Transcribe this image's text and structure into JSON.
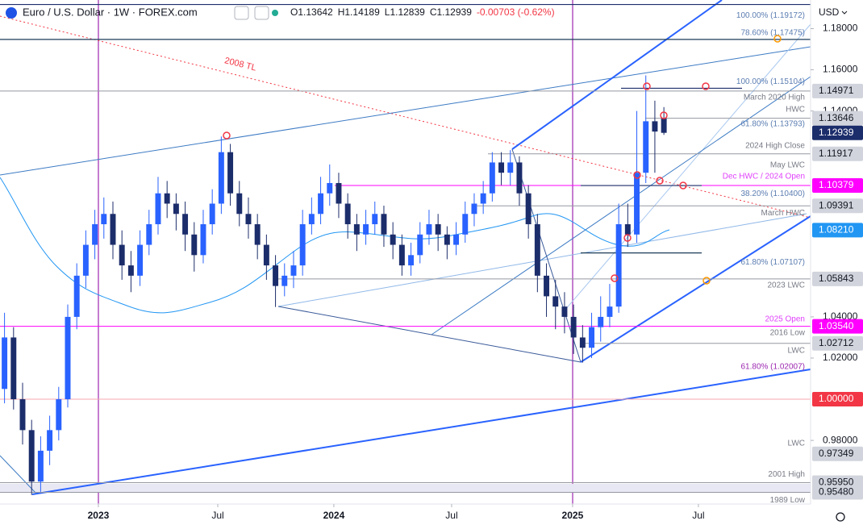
{
  "chart_data": {
    "type": "candlestick",
    "title": "Euro / U.S. Dollar · 1W · FOREX.com",
    "legend_values": [
      "O1.13642",
      "H1.14189",
      "L1.12839",
      "C1.12939",
      "-0.00703 (-0.62%)"
    ],
    "currency": "USD",
    "up_color": "#2962ff",
    "down_color": "#1c2d6b",
    "xlim": [
      -0.5,
      89.24
    ],
    "xticks": [
      {
        "value": 10.39,
        "label": "2023"
      },
      {
        "value": 23.61,
        "label": "Jul"
      },
      {
        "value": 36.46,
        "label": "2024"
      },
      {
        "value": 49.5,
        "label": "Jul"
      },
      {
        "value": 62.89,
        "label": "2025"
      },
      {
        "value": 76.82,
        "label": "Jul"
      }
    ],
    "ylim": [
      0.9491,
      1.1939
    ],
    "yticks": [
      {
        "value": 1.18,
        "label": "1.18000"
      },
      {
        "value": 1.16,
        "label": "1.16000"
      },
      {
        "value": 1.14,
        "label": "1.14000"
      },
      {
        "value": 1.04,
        "label": "1.04000"
      },
      {
        "value": 1.02,
        "label": "1.02000"
      },
      {
        "value": 0.98,
        "label": "0.98000"
      }
    ],
    "ohlc": [
      [
        1.005,
        1.042,
        0.998,
        1.03
      ],
      [
        1.03,
        1.035,
        0.995,
        1.0
      ],
      [
        1.0,
        1.008,
        0.978,
        0.985
      ],
      [
        0.985,
        0.99,
        0.9535,
        0.96
      ],
      [
        0.96,
        0.982,
        0.955,
        0.975
      ],
      [
        0.975,
        0.992,
        0.968,
        0.985
      ],
      [
        0.985,
        1.006,
        0.98,
        1.0
      ],
      [
        1.0,
        1.046,
        0.996,
        1.04
      ],
      [
        1.04,
        1.066,
        1.034,
        1.06
      ],
      [
        1.06,
        1.082,
        1.054,
        1.075
      ],
      [
        1.075,
        1.092,
        1.068,
        1.085
      ],
      [
        1.085,
        1.098,
        1.078,
        1.09
      ],
      [
        1.09,
        1.096,
        1.068,
        1.075
      ],
      [
        1.075,
        1.082,
        1.058,
        1.065
      ],
      [
        1.065,
        1.072,
        1.052,
        1.06
      ],
      [
        1.06,
        1.082,
        1.055,
        1.075
      ],
      [
        1.075,
        1.092,
        1.07,
        1.085
      ],
      [
        1.085,
        1.108,
        1.08,
        1.1
      ],
      [
        1.1,
        1.106,
        1.088,
        1.095
      ],
      [
        1.095,
        1.1,
        1.082,
        1.09
      ],
      [
        1.09,
        1.096,
        1.072,
        1.08
      ],
      [
        1.08,
        1.086,
        1.062,
        1.07
      ],
      [
        1.07,
        1.092,
        1.066,
        1.085
      ],
      [
        1.085,
        1.102,
        1.08,
        1.095
      ],
      [
        1.095,
        1.1276,
        1.09,
        1.12
      ],
      [
        1.12,
        1.124,
        1.094,
        1.1
      ],
      [
        1.1,
        1.106,
        1.084,
        1.09
      ],
      [
        1.09,
        1.098,
        1.078,
        1.085
      ],
      [
        1.085,
        1.09,
        1.068,
        1.075
      ],
      [
        1.075,
        1.08,
        1.058,
        1.065
      ],
      [
        1.065,
        1.07,
        1.0448,
        1.055
      ],
      [
        1.055,
        1.066,
        1.05,
        1.06
      ],
      [
        1.06,
        1.072,
        1.054,
        1.065
      ],
      [
        1.065,
        1.092,
        1.06,
        1.085
      ],
      [
        1.085,
        1.098,
        1.08,
        1.09
      ],
      [
        1.09,
        1.108,
        1.085,
        1.1
      ],
      [
        1.1,
        1.114,
        1.094,
        1.105
      ],
      [
        1.105,
        1.11,
        1.088,
        1.095
      ],
      [
        1.095,
        1.1,
        1.078,
        1.085
      ],
      [
        1.085,
        1.09,
        1.072,
        1.08
      ],
      [
        1.08,
        1.092,
        1.075,
        1.085
      ],
      [
        1.085,
        1.096,
        1.08,
        1.09
      ],
      [
        1.09,
        1.094,
        1.074,
        1.08
      ],
      [
        1.08,
        1.086,
        1.068,
        1.075
      ],
      [
        1.075,
        1.08,
        1.06,
        1.065
      ],
      [
        1.065,
        1.076,
        1.06,
        1.07
      ],
      [
        1.07,
        1.086,
        1.066,
        1.08
      ],
      [
        1.08,
        1.092,
        1.075,
        1.085
      ],
      [
        1.085,
        1.09,
        1.072,
        1.08
      ],
      [
        1.08,
        1.084,
        1.068,
        1.075
      ],
      [
        1.075,
        1.086,
        1.07,
        1.08
      ],
      [
        1.08,
        1.096,
        1.076,
        1.09
      ],
      [
        1.09,
        1.1,
        1.084,
        1.095
      ],
      [
        1.095,
        1.106,
        1.09,
        1.1
      ],
      [
        1.1,
        1.12,
        1.096,
        1.115
      ],
      [
        1.115,
        1.12,
        1.104,
        1.11
      ],
      [
        1.11,
        1.121,
        1.104,
        1.115
      ],
      [
        1.115,
        1.118,
        1.094,
        1.1
      ],
      [
        1.1,
        1.104,
        1.078,
        1.085
      ],
      [
        1.085,
        1.09,
        1.052,
        1.06
      ],
      [
        1.06,
        1.066,
        1.04,
        1.05
      ],
      [
        1.05,
        1.058,
        1.034,
        1.045
      ],
      [
        1.045,
        1.052,
        1.032,
        1.04
      ],
      [
        1.04,
        1.046,
        1.022,
        1.03
      ],
      [
        1.03,
        1.036,
        1.0178,
        1.025
      ],
      [
        1.025,
        1.042,
        1.02,
        1.035
      ],
      [
        1.035,
        1.05,
        1.028,
        1.04
      ],
      [
        1.04,
        1.056,
        1.035,
        1.045
      ],
      [
        1.045,
        1.095,
        1.042,
        1.085
      ],
      [
        1.085,
        1.095,
        1.074,
        1.08
      ],
      [
        1.08,
        1.14,
        1.076,
        1.11
      ],
      [
        1.11,
        1.1573,
        1.105,
        1.135
      ],
      [
        1.135,
        1.145,
        1.11,
        1.13
      ],
      [
        1.13642,
        1.14189,
        1.12839,
        1.12939
      ]
    ],
    "levels": [
      {
        "value": 1.14971,
        "tag": "1.14971",
        "color": "#d1d4dc",
        "label_color": "#131722"
      },
      {
        "value": 1.13646,
        "tag": "1.13646",
        "color": "#d1d4dc",
        "label_color": "#131722"
      },
      {
        "value": 1.12939,
        "tag": "1.12939",
        "color": "#1c2d6b",
        "label_color": "#ffffff"
      },
      {
        "value": 1.11917,
        "tag": "1.11917",
        "color": "#d1d4dc",
        "label_color": "#131722"
      },
      {
        "value": 1.10379,
        "tag": "1.10379",
        "color": "#ff00ff",
        "label_color": "#ffffff"
      },
      {
        "value": 1.09391,
        "tag": "1.09391",
        "color": "#d1d4dc",
        "label_color": "#131722"
      },
      {
        "value": 1.0821,
        "tag": "1.08210",
        "color": "#2196f3",
        "label_color": "#ffffff"
      },
      {
        "value": 1.05843,
        "tag": "1.05843",
        "color": "#d1d4dc",
        "label_color": "#131722"
      },
      {
        "value": 1.0354,
        "tag": "1.03540",
        "color": "#ff00ff",
        "label_color": "#ffffff"
      },
      {
        "value": 1.02712,
        "tag": "1.02712",
        "color": "#d1d4dc",
        "label_color": "#131722"
      },
      {
        "value": 1.0,
        "tag": "1.00000",
        "color": "#f23645",
        "label_color": "#ffffff"
      },
      {
        "value": 0.97349,
        "tag": "0.97349",
        "color": "#d1d4dc",
        "label_color": "#131722"
      },
      {
        "value": 0.9595,
        "tag": "0.95950",
        "color": "#d1d4dc",
        "label_color": "#131722"
      },
      {
        "value": 0.9548,
        "tag": "0.95480",
        "color": "#d1d4dc",
        "label_color": "#131722"
      }
    ],
    "annotations": [
      {
        "text": "100.00% (1.19172)",
        "value": 1.19172,
        "color": "#5b7db1"
      },
      {
        "text": "78.60% (1.17475)",
        "value": 1.17475,
        "color": "#5b7db1"
      },
      {
        "text": "100.00% (1.15104)",
        "value": 1.15104,
        "color": "#5b7db1"
      },
      {
        "text": "March 2020 High",
        "value": 1.14971,
        "color": "#787b86"
      },
      {
        "text": "HWC",
        "value": 1.13646,
        "color": "#787b86"
      },
      {
        "text": "61.80% (1.13793)",
        "value": 1.13793,
        "color": "#5b7db1"
      },
      {
        "text": "2024 High Close",
        "value": 1.11917,
        "color": "#787b86"
      },
      {
        "text": "May LWC",
        "value": 1.11917,
        "color": "#787b86"
      },
      {
        "text": "Dec HWC / 2024 Open",
        "value": 1.10379,
        "color": "#e040fb"
      },
      {
        "text": "38.20% (1.10400)",
        "value": 1.104,
        "color": "#5b7db1"
      },
      {
        "text": "March HWC",
        "value": 1.09391,
        "color": "#787b86"
      },
      {
        "text": "61.80% (1.07107)",
        "value": 1.07107,
        "color": "#5b7db1"
      },
      {
        "text": "2023 LWC",
        "value": 1.05843,
        "color": "#787b86"
      },
      {
        "text": "2025 Open",
        "value": 1.0354,
        "color": "#e040fb"
      },
      {
        "text": "2016 Low",
        "value": 1.0354,
        "color": "#787b86"
      },
      {
        "text": "LWC",
        "value": 1.02712,
        "color": "#787b86"
      },
      {
        "text": "61.80% (1.02007)",
        "value": 1.02007,
        "color": "#9c27b0"
      },
      {
        "text": "LWC",
        "value": 0.97349,
        "color": "#787b86"
      },
      {
        "text": "2001 High",
        "value": 0.9595,
        "color": "#787b86"
      },
      {
        "text": "1989 Low",
        "value": 0.9548,
        "color": "#787b86"
      }
    ],
    "trendline_label": {
      "text": "2008 TL",
      "color": "#f23645"
    }
  }
}
